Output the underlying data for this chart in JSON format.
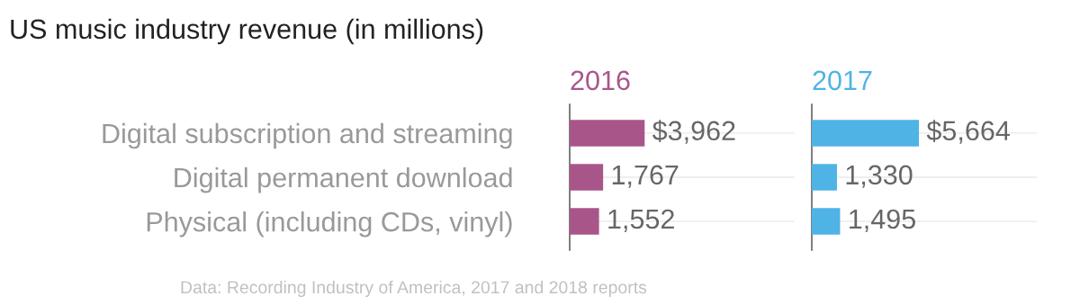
{
  "chart_data": [
    {
      "type": "bar",
      "orientation": "horizontal",
      "title": "US music industry revenue (in millions)",
      "categories": [
        "Digital subscription and streaming",
        "Digital permanent download",
        "Physical (including CDs, vinyl)"
      ],
      "series": [
        {
          "name": "2016",
          "color": "#a8568a",
          "values": [
            3962,
            1767,
            1552
          ],
          "value_labels": [
            "$3,962",
            "1,767",
            "1,552"
          ]
        }
      ],
      "grid": "y",
      "tick_labels": "y",
      "annotations": [
        "Data: Recording Industry of America, 2017 and 2018 reports"
      ]
    },
    {
      "type": "bar",
      "orientation": "horizontal",
      "categories": [
        null,
        null,
        null
      ],
      "series": [
        {
          "name": "2017",
          "color": "#4fb3e6",
          "values": [
            5664,
            1330,
            1495
          ],
          "value_labels": [
            "$5,664",
            "1,330",
            "1,495"
          ]
        }
      ],
      "grid": "y",
      "tick_labels": false
    }
  ]
}
